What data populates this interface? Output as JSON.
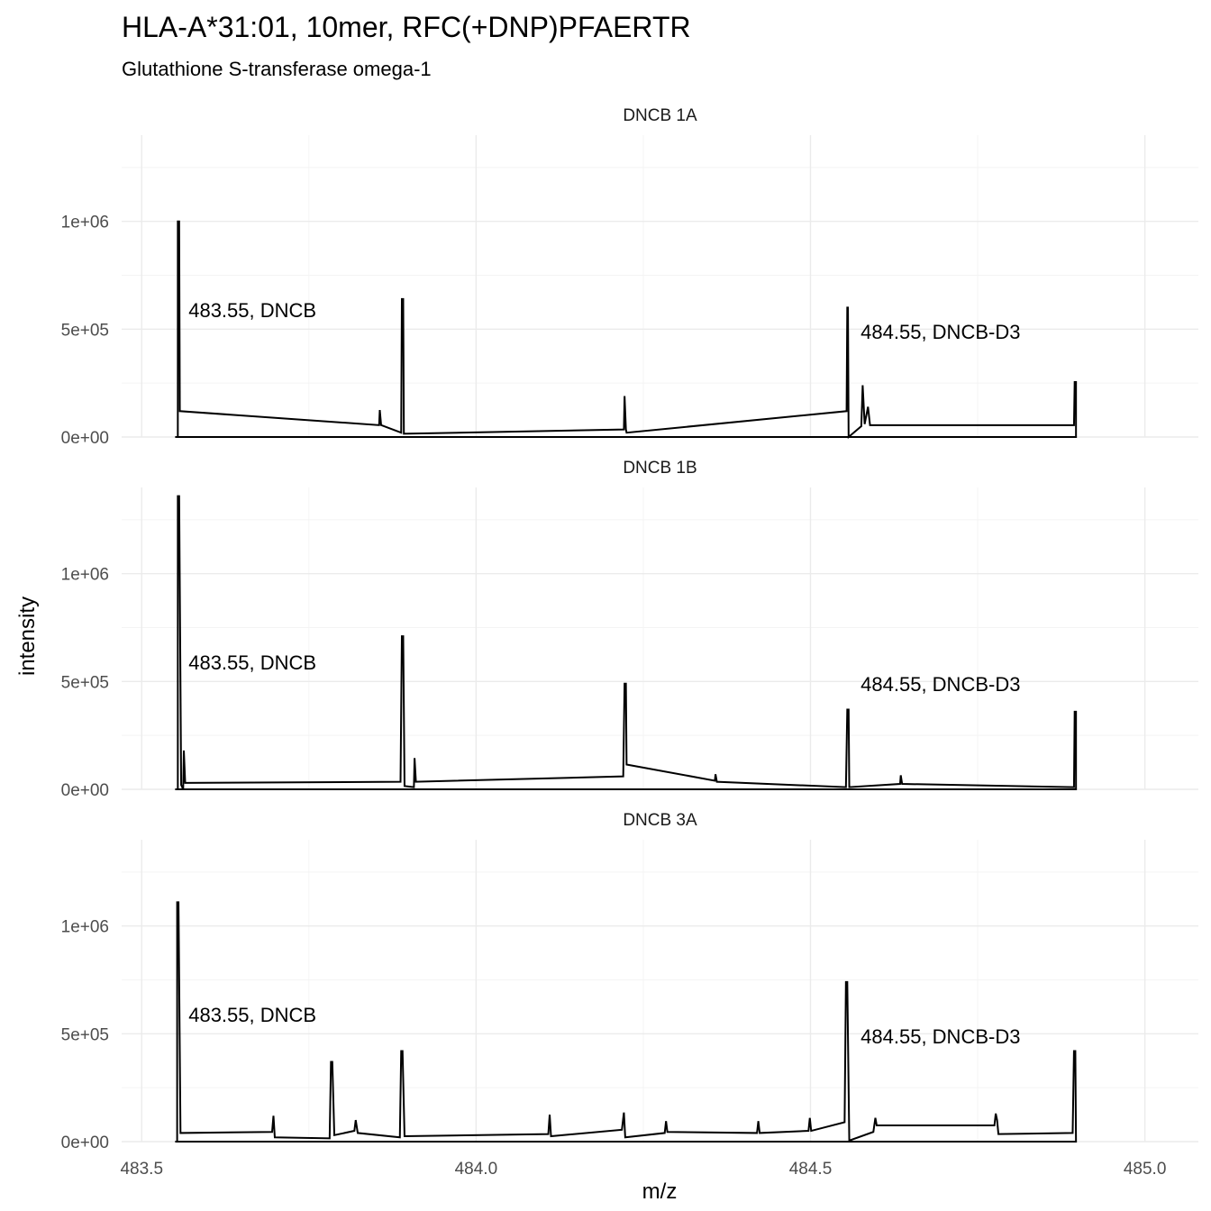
{
  "chart_data": {
    "type": "line",
    "title": "HLA-A*31:01, 10mer, RFC(+DNP)PFAERTR",
    "subtitle": "Glutathione S-transferase omega-1",
    "xlabel": "m/z",
    "ylabel": "intensity",
    "xlim": [
      483.47,
      485.08
    ],
    "ylim": [
      0,
      1400000
    ],
    "x_ticks": [
      483.5,
      484.0,
      484.5,
      485.0
    ],
    "x_tick_labels": [
      "483.5",
      "484.0",
      "484.5",
      "485.0"
    ],
    "y_ticks": [
      0,
      500000,
      1000000
    ],
    "y_tick_labels": [
      "0e+00",
      "5e+05",
      "1e+06"
    ],
    "grid": true,
    "legend": "none",
    "facets": [
      {
        "label": "DNCB 1A",
        "annotations": [
          {
            "text": "483.55, DNCB",
            "x": 483.57,
            "y": 590000
          },
          {
            "text": "484.55, DNCB-D3",
            "x": 484.575,
            "y": 490000
          }
        ],
        "points": [
          [
            483.55,
            0
          ],
          [
            483.554,
            0
          ],
          [
            483.554,
            1000000
          ],
          [
            483.556,
            1000000
          ],
          [
            483.557,
            120000
          ],
          [
            483.855,
            55000
          ],
          [
            483.856,
            125000
          ],
          [
            483.858,
            55000
          ],
          [
            483.888,
            20000
          ],
          [
            483.889,
            640000
          ],
          [
            483.891,
            640000
          ],
          [
            483.892,
            15000
          ],
          [
            484.221,
            35000
          ],
          [
            484.222,
            190000
          ],
          [
            484.224,
            35000
          ],
          [
            484.225,
            20000
          ],
          [
            484.554,
            120000
          ],
          [
            484.555,
            600000
          ],
          [
            484.556,
            600000
          ],
          [
            484.557,
            0
          ],
          [
            484.576,
            50000
          ],
          [
            484.578,
            240000
          ],
          [
            484.581,
            60000
          ],
          [
            484.586,
            140000
          ],
          [
            484.589,
            55000
          ],
          [
            484.894,
            55000
          ],
          [
            484.895,
            255000
          ],
          [
            484.897,
            255000
          ],
          [
            484.897,
            0
          ],
          [
            483.55,
            0
          ]
        ]
      },
      {
        "label": "DNCB 1B",
        "annotations": [
          {
            "text": "483.55, DNCB",
            "x": 483.57,
            "y": 590000
          },
          {
            "text": "484.55, DNCB-D3",
            "x": 484.575,
            "y": 490000
          }
        ],
        "points": [
          [
            483.55,
            0
          ],
          [
            483.554,
            0
          ],
          [
            483.554,
            1360000
          ],
          [
            483.556,
            1360000
          ],
          [
            483.559,
            20000
          ],
          [
            483.562,
            0
          ],
          [
            483.563,
            180000
          ],
          [
            483.565,
            30000
          ],
          [
            483.887,
            35000
          ],
          [
            483.889,
            710000
          ],
          [
            483.891,
            710000
          ],
          [
            483.893,
            15000
          ],
          [
            483.907,
            10000
          ],
          [
            483.908,
            145000
          ],
          [
            483.91,
            35000
          ],
          [
            484.22,
            60000
          ],
          [
            484.222,
            490000
          ],
          [
            484.224,
            490000
          ],
          [
            484.225,
            115000
          ],
          [
            484.357,
            40000
          ],
          [
            484.358,
            70000
          ],
          [
            484.36,
            35000
          ],
          [
            484.553,
            10000
          ],
          [
            484.555,
            370000
          ],
          [
            484.557,
            370000
          ],
          [
            484.558,
            10000
          ],
          [
            484.634,
            25000
          ],
          [
            484.635,
            65000
          ],
          [
            484.637,
            25000
          ],
          [
            484.894,
            10000
          ],
          [
            484.895,
            360000
          ],
          [
            484.897,
            360000
          ],
          [
            484.897,
            0
          ],
          [
            483.55,
            0
          ]
        ]
      },
      {
        "label": "DNCB 3A",
        "annotations": [
          {
            "text": "483.55, DNCB",
            "x": 483.57,
            "y": 590000
          },
          {
            "text": "484.55, DNCB-D3",
            "x": 484.575,
            "y": 490000
          }
        ],
        "points": [
          [
            483.55,
            0
          ],
          [
            483.553,
            0
          ],
          [
            483.553,
            1110000
          ],
          [
            483.555,
            1110000
          ],
          [
            483.558,
            40000
          ],
          [
            483.695,
            45000
          ],
          [
            483.697,
            120000
          ],
          [
            483.699,
            20000
          ],
          [
            483.781,
            15000
          ],
          [
            483.783,
            370000
          ],
          [
            483.785,
            370000
          ],
          [
            483.788,
            30000
          ],
          [
            483.818,
            50000
          ],
          [
            483.82,
            100000
          ],
          [
            483.823,
            40000
          ],
          [
            483.886,
            20000
          ],
          [
            483.888,
            420000
          ],
          [
            483.89,
            420000
          ],
          [
            483.893,
            25000
          ],
          [
            484.108,
            35000
          ],
          [
            484.11,
            125000
          ],
          [
            484.112,
            25000
          ],
          [
            484.218,
            55000
          ],
          [
            484.221,
            135000
          ],
          [
            484.223,
            20000
          ],
          [
            484.282,
            40000
          ],
          [
            484.284,
            95000
          ],
          [
            484.286,
            45000
          ],
          [
            484.42,
            40000
          ],
          [
            484.422,
            95000
          ],
          [
            484.424,
            40000
          ],
          [
            484.497,
            50000
          ],
          [
            484.499,
            110000
          ],
          [
            484.501,
            50000
          ],
          [
            484.551,
            90000
          ],
          [
            484.553,
            740000
          ],
          [
            484.555,
            740000
          ],
          [
            484.558,
            5000
          ],
          [
            484.594,
            45000
          ],
          [
            484.597,
            110000
          ],
          [
            484.599,
            75000
          ],
          [
            484.775,
            75000
          ],
          [
            484.777,
            130000
          ],
          [
            484.779,
            100000
          ],
          [
            484.781,
            35000
          ],
          [
            484.892,
            40000
          ],
          [
            484.894,
            420000
          ],
          [
            484.896,
            420000
          ],
          [
            484.897,
            0
          ],
          [
            483.55,
            0
          ]
        ]
      }
    ]
  }
}
